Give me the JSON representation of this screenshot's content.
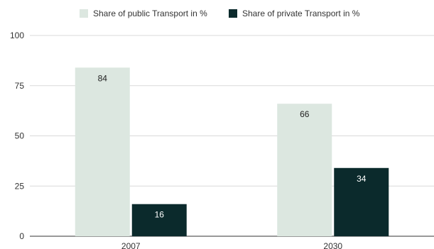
{
  "chart_data": {
    "type": "bar",
    "categories": [
      "2007",
      "2030"
    ],
    "series": [
      {
        "name": "Share of public Transport in %",
        "values": [
          84,
          66
        ],
        "color": "#dce7e0",
        "label_color": "#222222"
      },
      {
        "name": "Share of private Transport in %",
        "values": [
          16,
          34
        ],
        "color": "#0b2a2c",
        "label_color": "#ffffff"
      }
    ],
    "ylim": [
      0,
      100
    ],
    "yticks": [
      "0",
      "25",
      "50",
      "75",
      "100"
    ],
    "grid": true,
    "legend_position": "top",
    "gridline_color": "#d9d9d9",
    "axis_color": "#333333"
  }
}
